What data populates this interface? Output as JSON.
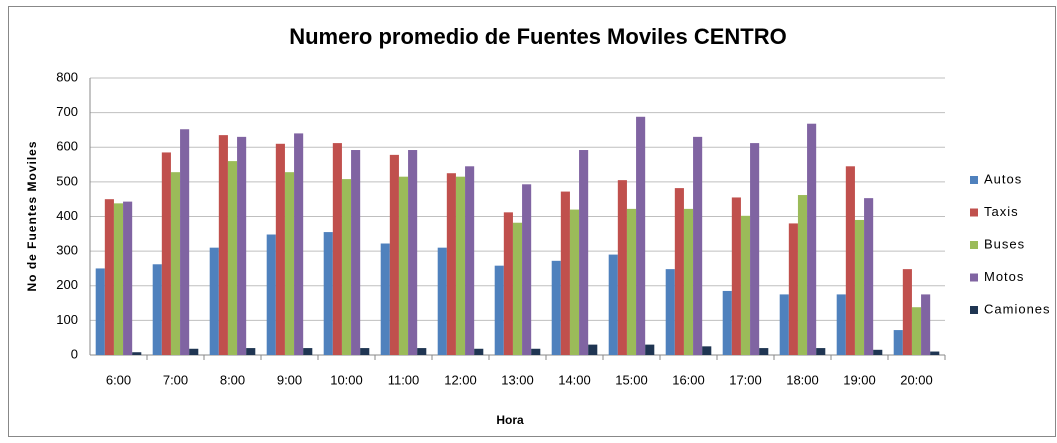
{
  "chart_data": {
    "type": "bar",
    "title": "Numero promedio de Fuentes Moviles CENTRO",
    "x_label": "Hora",
    "y_label": "No de Fuentes Moviles",
    "categories": [
      "6:00",
      "7:00",
      "8:00",
      "9:00",
      "10:00",
      "11:00",
      "12:00",
      "13:00",
      "14:00",
      "15:00",
      "16:00",
      "17:00",
      "18:00",
      "19:00",
      "20:00"
    ],
    "series": [
      {
        "name": "Autos",
        "color": "#4f81bd",
        "values": [
          250,
          262,
          310,
          348,
          355,
          322,
          310,
          258,
          272,
          290,
          248,
          185,
          175,
          175,
          72
        ]
      },
      {
        "name": "Taxis",
        "color": "#c0504d",
        "values": [
          450,
          585,
          635,
          610,
          612,
          578,
          525,
          412,
          472,
          505,
          482,
          455,
          380,
          545,
          248
        ]
      },
      {
        "name": "Buses",
        "color": "#9bbb59",
        "values": [
          438,
          528,
          560,
          528,
          508,
          515,
          515,
          382,
          420,
          422,
          422,
          402,
          462,
          390,
          138
        ]
      },
      {
        "name": "Motos",
        "color": "#8064a2",
        "values": [
          443,
          652,
          630,
          640,
          592,
          592,
          545,
          493,
          592,
          688,
          630,
          612,
          668,
          453,
          175
        ]
      },
      {
        "name": "Camiones",
        "color": "#1f3552",
        "values": [
          8,
          18,
          20,
          20,
          20,
          20,
          18,
          18,
          30,
          30,
          25,
          20,
          20,
          15,
          10
        ]
      }
    ],
    "ylim": [
      0,
      800
    ],
    "yticks": [
      0,
      100,
      200,
      300,
      400,
      500,
      600,
      700,
      800
    ],
    "grid": true,
    "legend": "right"
  }
}
